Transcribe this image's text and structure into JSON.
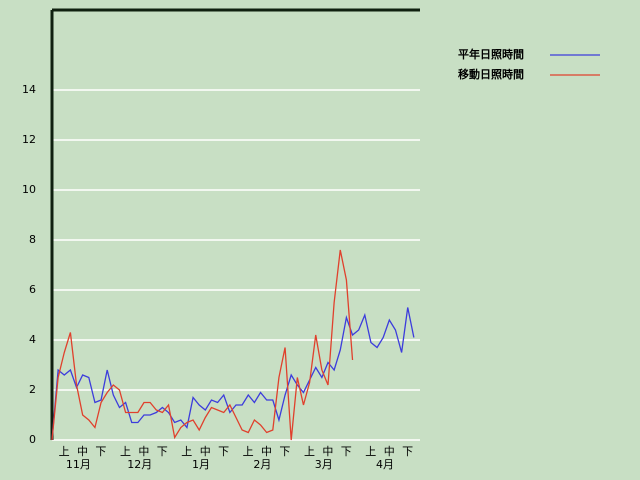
{
  "chart_data": {
    "type": "line",
    "categories": [
      null,
      "上",
      null,
      null,
      "中",
      null,
      null,
      "下",
      null,
      null,
      null,
      "上",
      null,
      null,
      "中",
      null,
      null,
      "下",
      null,
      null,
      null,
      "上",
      null,
      null,
      "中",
      null,
      null,
      "下",
      null,
      null,
      null,
      "上",
      null,
      null,
      "中",
      null,
      null,
      "下",
      null,
      null,
      null,
      "上",
      null,
      null,
      "中",
      null,
      null,
      "下",
      null,
      null,
      null,
      "上",
      null,
      null,
      "中",
      null,
      null,
      "下",
      null,
      null
    ],
    "months": [
      "11月",
      "12月",
      "1月",
      "2月",
      "3月",
      "4月"
    ],
    "series": [
      {
        "name": "平年日照時間",
        "color": "#3c3cdc",
        "values": [
          0,
          2.8,
          2.6,
          2.8,
          2.1,
          2.6,
          2.5,
          1.5,
          1.6,
          2.8,
          1.8,
          1.3,
          1.5,
          0.7,
          0.7,
          1.0,
          1.0,
          1.1,
          1.3,
          1.1,
          0.7,
          0.8,
          0.5,
          1.7,
          1.4,
          1.2,
          1.6,
          1.5,
          1.8,
          1.1,
          1.4,
          1.4,
          1.8,
          1.5,
          1.9,
          1.6,
          1.6,
          0.8,
          1.8,
          2.6,
          2.2,
          1.9,
          2.4,
          2.9,
          2.5,
          3.1,
          2.8,
          3.6,
          4.9,
          4.2,
          4.4,
          5.0,
          3.9,
          3.7,
          4.1,
          4.8,
          4.4,
          3.5,
          5.3,
          4.1
        ]
      },
      {
        "name": "移動日照時間",
        "color": "#e0402c",
        "values": [
          0,
          2.5,
          3.5,
          4.3,
          2.2,
          1.0,
          0.8,
          0.5,
          1.5,
          1.9,
          2.2,
          2.0,
          1.1,
          1.1,
          1.1,
          1.5,
          1.5,
          1.2,
          1.1,
          1.4,
          0.1,
          0.5,
          0.7,
          0.8,
          0.4,
          0.9,
          1.3,
          1.2,
          1.1,
          1.4,
          0.9,
          0.4,
          0.3,
          0.8,
          0.6,
          0.3,
          0.4,
          2.5,
          3.7,
          0.0,
          2.5,
          1.4,
          2.3,
          4.2,
          2.8,
          2.2,
          5.5,
          7.6,
          6.4,
          3.2,
          null,
          null,
          null,
          null,
          null,
          null,
          null,
          null,
          null,
          null
        ]
      }
    ],
    "ylim": [
      0,
      17.2
    ],
    "yticks": [
      0,
      2,
      4,
      6,
      8,
      10,
      12,
      14
    ],
    "grid": true
  }
}
